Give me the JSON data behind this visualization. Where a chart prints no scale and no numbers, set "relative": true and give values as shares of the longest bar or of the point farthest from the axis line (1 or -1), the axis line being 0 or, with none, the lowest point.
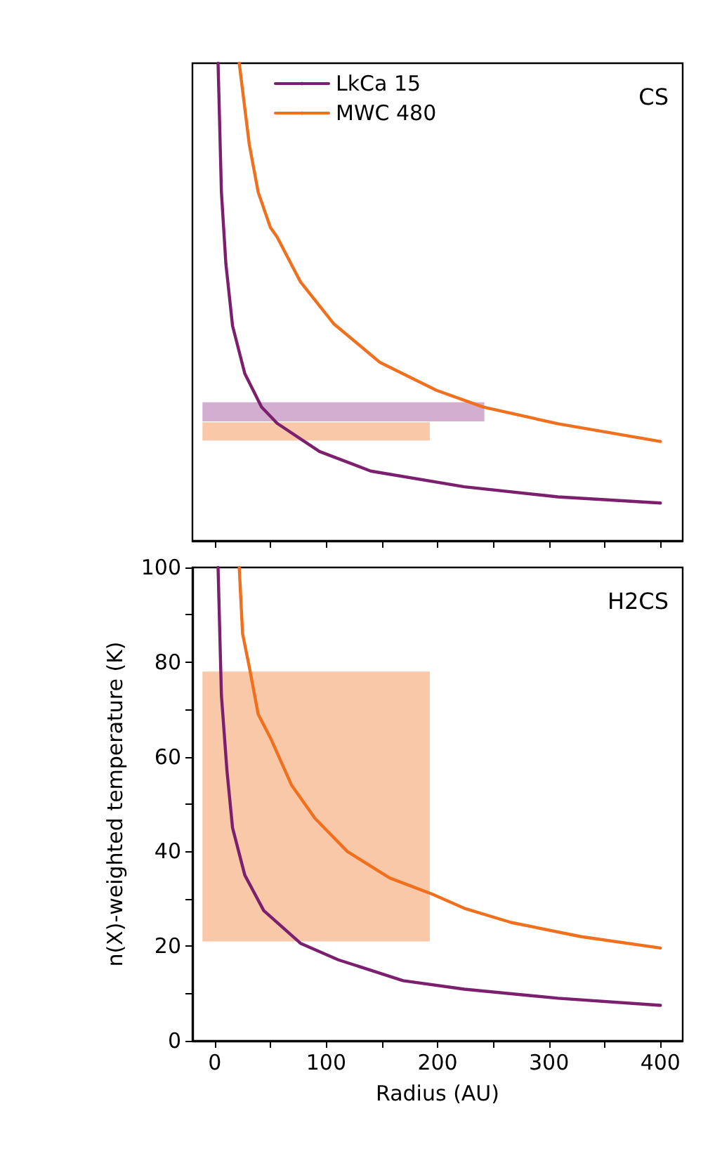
{
  "chart_data": [
    {
      "type": "line",
      "relative": true,
      "annotations": [
        "CS"
      ],
      "legend": "top",
      "tick_labels": false,
      "grid": false,
      "marker": "none",
      "line_style": "solid",
      "xlim": [
        -20,
        420
      ],
      "xticks": [
        {
          "value": 0,
          "label": null
        },
        {
          "value": 50,
          "label": null
        },
        {
          "value": 100,
          "label": null
        },
        {
          "value": 150,
          "label": null
        },
        {
          "value": 200,
          "label": null
        },
        {
          "value": 250,
          "label": null
        },
        {
          "value": 300,
          "label": null
        },
        {
          "value": 350,
          "label": null
        },
        {
          "value": 400,
          "label": null
        }
      ],
      "series": [
        {
          "color": "#d4aed0",
          "x": [
            -11,
            242
          ],
          "values": [
            null,
            null
          ],
          "lower": [
            0.25,
            0.25
          ],
          "upper": [
            0.29,
            0.29
          ]
        },
        {
          "color": "#f8c8a8",
          "x": [
            -11,
            193
          ],
          "values": [
            null,
            null
          ],
          "lower": [
            0.21,
            0.21
          ],
          "upper": [
            0.248,
            0.248
          ]
        },
        {
          "name": "LkCa 15",
          "color": "#7b1f6e",
          "x": [
            3,
            6,
            10,
            16,
            27,
            42,
            56,
            94,
            140,
            224,
            308,
            400
          ],
          "values": [
            1,
            0.73,
            0.58,
            0.45,
            0.35,
            0.28,
            0.246,
            0.187,
            0.146,
            0.113,
            0.092,
            0.079
          ]
        },
        {
          "name": "MWC 480",
          "color": "#f0701d",
          "x": [
            22,
            31,
            39,
            50,
            56,
            77,
            107,
            148,
            199,
            241,
            308,
            400
          ],
          "values": [
            1,
            0.83,
            0.73,
            0.656,
            0.636,
            0.542,
            0.454,
            0.374,
            0.315,
            0.28,
            0.245,
            0.208
          ]
        }
      ]
    },
    {
      "type": "line",
      "annotations": [
        "H2CS"
      ],
      "xlabel": "Radius (AU)",
      "ylabel": "n(X)-weighted temperature (K)",
      "grid": false,
      "marker": "none",
      "line_style": "solid",
      "xlim": [
        -20,
        420
      ],
      "ylim": [
        0,
        100
      ],
      "xticks": [
        0,
        {
          "value": 50,
          "label": null
        },
        100,
        {
          "value": 150,
          "label": null
        },
        200,
        {
          "value": 250,
          "label": null
        },
        300,
        {
          "value": 350,
          "label": null
        },
        400
      ],
      "yticks": [
        0,
        {
          "value": 10,
          "label": null
        },
        20,
        {
          "value": 30,
          "label": null
        },
        40,
        {
          "value": 50,
          "label": null
        },
        60,
        {
          "value": 70,
          "label": null
        },
        80,
        {
          "value": 90,
          "label": null
        },
        100
      ],
      "series": [
        {
          "color": "#f8c8a8",
          "x": [
            -11,
            193
          ],
          "values": [
            null,
            null
          ],
          "lower": [
            21,
            21
          ],
          "upper": [
            78,
            78
          ]
        },
        {
          "color": "#7b1f6e",
          "x": [
            3,
            6,
            11,
            16,
            27,
            44,
            77,
            111,
            148,
            169,
            224,
            308,
            400
          ],
          "values": [
            100,
            73,
            57,
            45,
            35,
            27.5,
            20.6,
            17.1,
            14.3,
            12.7,
            10.9,
            9,
            7.5
          ]
        },
        {
          "color": "#f0701d",
          "x": [
            22,
            25,
            31,
            39,
            50,
            69,
            90,
            119,
            157,
            195,
            224,
            266,
            329,
            400
          ],
          "values": [
            100,
            86,
            79,
            69,
            64,
            54,
            47,
            40,
            34.4,
            31,
            28,
            25,
            22,
            19.6
          ]
        }
      ]
    }
  ]
}
